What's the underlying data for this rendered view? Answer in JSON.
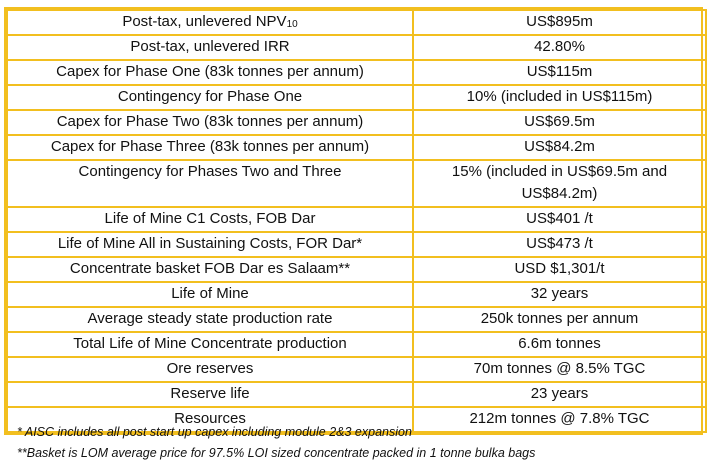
{
  "colors": {
    "border": "#f2bf1f",
    "text": "#111111",
    "background": "#ffffff"
  },
  "rows": [
    {
      "label": "Post-tax, unlevered NPV",
      "label_sub": "10",
      "value": "US$895m"
    },
    {
      "label": "Post-tax, unlevered IRR",
      "value": "42.80%"
    },
    {
      "label": "Capex for Phase One (83k tonnes per annum)",
      "value": "US$115m"
    },
    {
      "label": "Contingency for Phase One",
      "value": "10% (included in US$115m)"
    },
    {
      "label": "Capex for Phase Two (83k tonnes per annum)",
      "value": "US$69.5m"
    },
    {
      "label": "Capex for Phase Three (83k tonnes per annum)",
      "value": "US$84.2m"
    },
    {
      "label": "Contingency for Phases Two and Three",
      "value_line1": "15% (included in US$69.5m and",
      "value_line2": "US$84.2m)"
    },
    {
      "label": "Life of Mine C1 Costs, FOB Dar",
      "value": "US$401 /t"
    },
    {
      "label": "Life of Mine All in Sustaining Costs, FOR Dar*",
      "value": "US$473 /t"
    },
    {
      "label": "Concentrate basket FOB Dar es Salaam**",
      "value": "USD $1,301/t"
    },
    {
      "label": "Life of Mine",
      "value": "32 years"
    },
    {
      "label": "Average steady state production rate",
      "value": "250k tonnes per annum"
    },
    {
      "label": "Total Life of Mine Concentrate production",
      "value": "6.6m tonnes"
    },
    {
      "label": "Ore reserves",
      "value": "70m tonnes @ 8.5% TGC"
    },
    {
      "label": "Reserve life",
      "value": "23 years"
    },
    {
      "label": "Resources",
      "value": "212m tonnes @ 7.8% TGC"
    }
  ],
  "footnotes": [
    "* AISC includes all post start up capex including module 2&3 expansion",
    "**Basket is LOM average price for 97.5% LOI sized concentrate packed in 1 tonne bulka bags"
  ]
}
